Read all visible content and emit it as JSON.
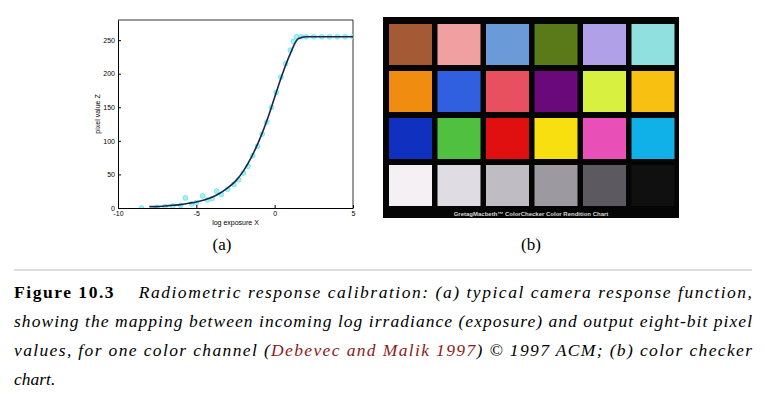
{
  "chart_data": {
    "type": "line",
    "annotations": [
      "(a)"
    ],
    "x_label": "log exposure X",
    "y_label": "pixel value Z",
    "xlim": [
      -10,
      5
    ],
    "ylim": [
      0,
      280
    ],
    "xticks": [
      -10,
      -5,
      0,
      5
    ],
    "yticks": [
      0,
      50,
      100,
      150,
      200,
      250
    ],
    "series": [
      {
        "type": "scatter",
        "color": "#5ee6e6",
        "marker": "circle",
        "x": [
          -8.5,
          -7.5,
          -7,
          -6.5,
          -6,
          -5.7,
          -5.3,
          -5,
          -4.6,
          -4.3,
          -4,
          -3.7,
          -3.4,
          -3,
          -2.6,
          -2.3,
          -2,
          -1.7,
          -1.4,
          -1.1,
          -0.8,
          -0.5,
          -0.2,
          0.1,
          0.4,
          0.7,
          1,
          1.2,
          1.4,
          1.7,
          2,
          2.5,
          3,
          3.5,
          4,
          4.5,
          5
        ],
        "values": [
          0,
          1,
          2,
          3,
          4,
          15,
          6,
          8,
          18,
          12,
          14,
          25,
          20,
          28,
          35,
          42,
          52,
          62,
          78,
          92,
          110,
          128,
          150,
          172,
          195,
          215,
          235,
          248,
          255,
          255,
          255,
          255,
          255,
          255,
          255,
          255,
          255
        ]
      },
      {
        "type": "line",
        "color": "#1c2550",
        "line_style": "solid",
        "x": [
          -8,
          -7.5,
          -7,
          -6.5,
          -6,
          -5.5,
          -5,
          -4.5,
          -4,
          -3.5,
          -3,
          -2.5,
          -2,
          -1.5,
          -1,
          -0.5,
          0,
          0.5,
          1,
          1.5,
          2,
          2.5,
          3,
          3.5,
          4,
          4.5,
          5
        ],
        "values": [
          2,
          2,
          3,
          4,
          5,
          7,
          9,
          12,
          16,
          22,
          30,
          40,
          55,
          75,
          100,
          130,
          165,
          200,
          230,
          252,
          255,
          255,
          255,
          255,
          255,
          255,
          255
        ]
      }
    ]
  },
  "color_checker": {
    "panel_label": "(b)",
    "title": "GretagMacbeth™ ColorChecker Color Rendition Chart",
    "colors": [
      [
        "#a45a35",
        "#f0a0a0",
        "#6a9ad8",
        "#5a7a1a",
        "#b0a0e8",
        "#90e0e0"
      ],
      [
        "#f08c10",
        "#3060e0",
        "#e85060",
        "#6a0a7a",
        "#d8f040",
        "#f8c010"
      ],
      [
        "#1030c0",
        "#50c040",
        "#e01010",
        "#f8e010",
        "#e850b8",
        "#10b0e8"
      ],
      [
        "#f4f0f4",
        "#e0dce4",
        "#c0bcc4",
        "#9c9aa0",
        "#5c5a60",
        "#101010"
      ]
    ]
  },
  "caption": {
    "label": "Figure 10.3",
    "lines": [
      [
        {
          "text": "Radiometric response calibration: (a) typical camera response function,",
          "style": "plain"
        }
      ],
      [
        {
          "text": "showing the mapping between incoming log irradiance (exposure) and output eight-bit pixel",
          "style": "plain"
        }
      ],
      [
        {
          "text": "values, for one color channel (",
          "style": "plain"
        },
        {
          "text": "Debevec and Malik 1997",
          "style": "link"
        },
        {
          "text": ") © 1997 ACM; (b) color checker",
          "style": "plain"
        }
      ],
      [
        {
          "text": "chart.",
          "style": "plain"
        }
      ]
    ]
  }
}
